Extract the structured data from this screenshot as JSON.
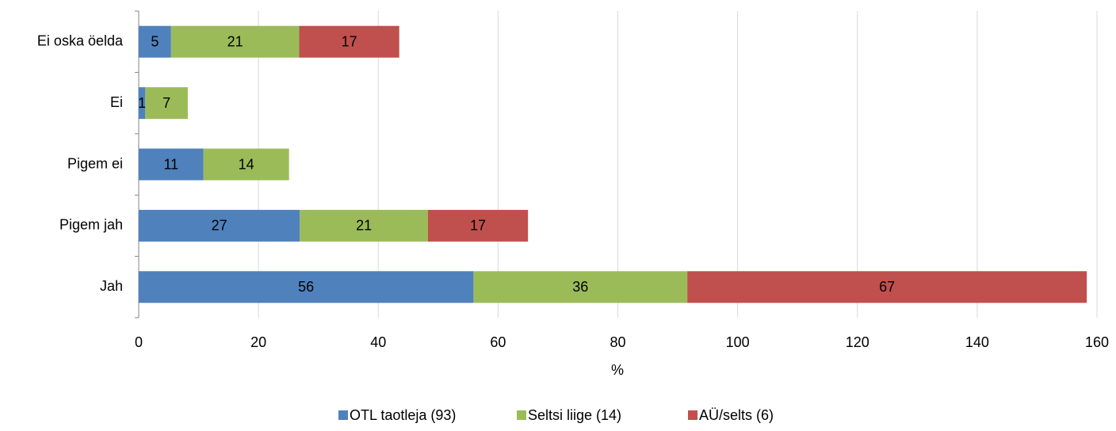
{
  "chart_data": {
    "type": "stacked_barh",
    "categories": [
      "Ei oska öelda",
      "Ei",
      "Pigem ei",
      "Pigem jah",
      "Jah"
    ],
    "series": [
      {
        "name": "OTL taotleja (93)",
        "color": "#4f81bd",
        "values": [
          5.4,
          1.1,
          10.8,
          26.9,
          55.9
        ],
        "value_labels": [
          "5",
          "1",
          "11",
          "27",
          "56"
        ]
      },
      {
        "name": "Seltsi liige (14)",
        "color": "#9bbb59",
        "values": [
          21.4,
          7.1,
          14.3,
          21.4,
          35.7
        ],
        "value_labels": [
          "21",
          "7",
          "14",
          "21",
          "36"
        ]
      },
      {
        "name": "AÜ/selts (6)",
        "color": "#c0504d",
        "values": [
          16.7,
          null,
          null,
          16.7,
          66.7
        ],
        "value_labels": [
          "17",
          null,
          null,
          "17",
          "67"
        ]
      }
    ],
    "xlabel": "%",
    "xlim": [
      0,
      160
    ],
    "xticks": [
      0,
      20,
      40,
      60,
      80,
      100,
      120,
      140,
      160
    ],
    "grid": true,
    "legend": "bottom"
  }
}
